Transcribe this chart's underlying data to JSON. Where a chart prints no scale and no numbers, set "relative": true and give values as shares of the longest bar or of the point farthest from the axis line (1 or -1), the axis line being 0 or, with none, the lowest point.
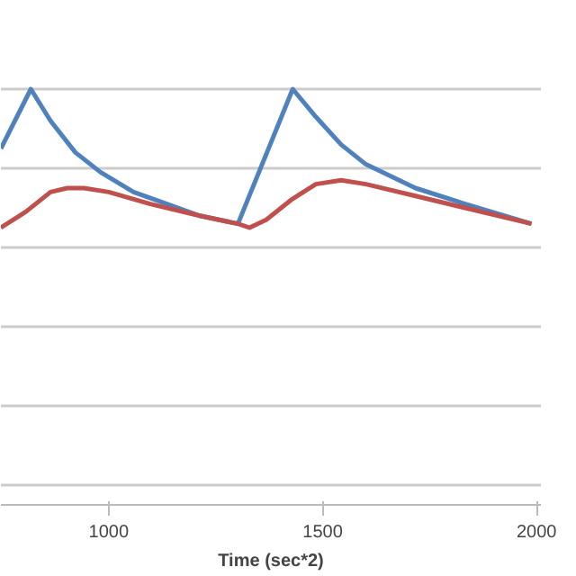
{
  "chart_data": {
    "type": "line",
    "xlabel": "Time (sec*2)",
    "relative": true,
    "grid": "y",
    "xlim": [
      748,
      2010
    ],
    "xticks": [
      1000,
      1500,
      2000
    ],
    "series": [
      {
        "color": "#4f81bd",
        "x": [
          748,
          818,
          864,
          922,
          981,
          1058,
          1136,
          1213,
          1302,
          1430,
          1484,
          1543,
          1601,
          1717,
          1833,
          1988
        ],
        "values": [
          0.85,
          1.0,
          0.92,
          0.84,
          0.79,
          0.74,
          0.71,
          0.68,
          0.66,
          1.0,
          0.93,
          0.86,
          0.81,
          0.75,
          0.71,
          0.66
        ]
      },
      {
        "color": "#c0504d",
        "x": [
          748,
          806,
          864,
          903,
          942,
          1000,
          1097,
          1213,
          1302,
          1329,
          1368,
          1426,
          1484,
          1543,
          1601,
          1717,
          1833,
          1988
        ],
        "values": [
          0.65,
          0.69,
          0.74,
          0.75,
          0.75,
          0.74,
          0.71,
          0.68,
          0.66,
          0.65,
          0.67,
          0.72,
          0.76,
          0.77,
          0.76,
          0.73,
          0.7,
          0.66
        ]
      }
    ]
  }
}
